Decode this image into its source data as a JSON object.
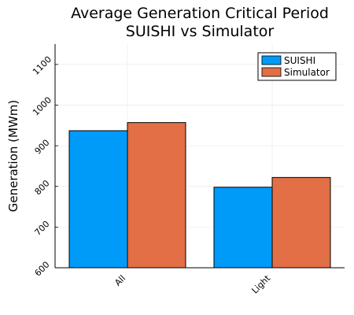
{
  "chart_data": {
    "type": "bar",
    "title": "Average Generation Critical Period",
    "subtitle": "SUISHI vs Simulator",
    "xlabel": "",
    "ylabel": "Generation (MWm)",
    "categories": [
      "All",
      "Light"
    ],
    "series": [
      {
        "name": "SUISHI",
        "values": [
          937,
          798
        ],
        "color": "#009af9"
      },
      {
        "name": "Simulator",
        "values": [
          957,
          822
        ],
        "color": "#e26f46"
      }
    ],
    "ylim": [
      600,
      1150
    ],
    "yticks": [
      600,
      700,
      800,
      900,
      1000,
      1100
    ],
    "grid": true,
    "legend_position": "top-right"
  }
}
